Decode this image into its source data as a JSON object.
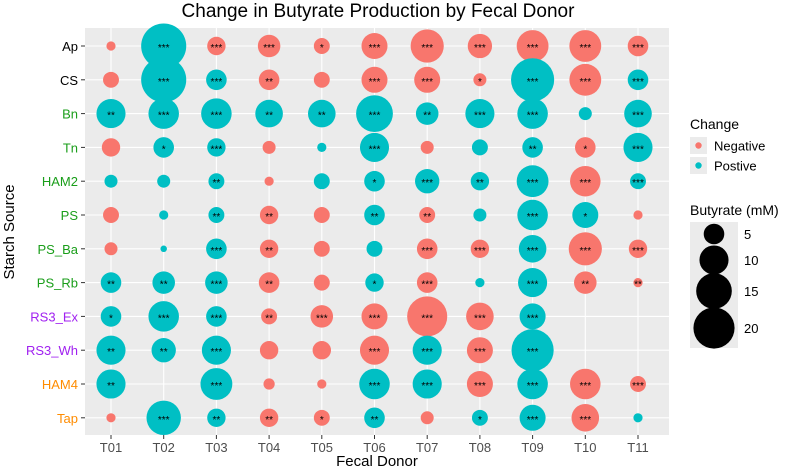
{
  "chart_data": {
    "type": "scatter",
    "subtype": "bubble",
    "title": "Change in Butyrate Production by Fecal Donor",
    "xlabel": "Fecal Donor",
    "ylabel": "Starch Source",
    "x_categories": [
      "T01",
      "T02",
      "T03",
      "T04",
      "T05",
      "T06",
      "T07",
      "T08",
      "T09",
      "T10",
      "T11"
    ],
    "y_categories": [
      {
        "label": "Ap",
        "color": "#000000"
      },
      {
        "label": "CS",
        "color": "#000000"
      },
      {
        "label": "Bn",
        "color": "#1a9e1a"
      },
      {
        "label": "Tn",
        "color": "#1a9e1a"
      },
      {
        "label": "HAM2",
        "color": "#1a9e1a"
      },
      {
        "label": "PS",
        "color": "#1a9e1a"
      },
      {
        "label": "PS_Ba",
        "color": "#1a9e1a"
      },
      {
        "label": "PS_Rb",
        "color": "#1a9e1a"
      },
      {
        "label": "RS3_Ex",
        "color": "#a020f0"
      },
      {
        "label": "RS3_Wh",
        "color": "#a020f0"
      },
      {
        "label": "HAM4",
        "color": "#ff8c00"
      },
      {
        "label": "Tap",
        "color": "#ff8c00"
      }
    ],
    "legend_change": {
      "title": "Change",
      "items": [
        {
          "label": "Negative",
          "color": "#F8766D"
        },
        {
          "label": "Postive",
          "color": "#00BFC4"
        }
      ]
    },
    "legend_size": {
      "title": "Butyrate (mM)",
      "values": [
        5,
        10,
        15,
        20
      ]
    },
    "points": [
      {
        "donor": "T01",
        "source": "Ap",
        "butyrate": 1,
        "change": "Negative",
        "sig": ""
      },
      {
        "donor": "T02",
        "source": "Ap",
        "butyrate": 24,
        "change": "Postive",
        "sig": "***"
      },
      {
        "donor": "T03",
        "source": "Ap",
        "butyrate": 4,
        "change": "Negative",
        "sig": "***"
      },
      {
        "donor": "T04",
        "source": "Ap",
        "butyrate": 6,
        "change": "Negative",
        "sig": "***"
      },
      {
        "donor": "T05",
        "source": "Ap",
        "butyrate": 3,
        "change": "Negative",
        "sig": "*"
      },
      {
        "donor": "T06",
        "source": "Ap",
        "butyrate": 8,
        "change": "Negative",
        "sig": "***"
      },
      {
        "donor": "T07",
        "source": "Ap",
        "butyrate": 13,
        "change": "Negative",
        "sig": "***"
      },
      {
        "donor": "T08",
        "source": "Ap",
        "butyrate": 7,
        "change": "Negative",
        "sig": "***"
      },
      {
        "donor": "T09",
        "source": "Ap",
        "butyrate": 12,
        "change": "Negative",
        "sig": "***"
      },
      {
        "donor": "T10",
        "source": "Ap",
        "butyrate": 12,
        "change": "Negative",
        "sig": "***"
      },
      {
        "donor": "T11",
        "source": "Ap",
        "butyrate": 5,
        "change": "Negative",
        "sig": "***"
      },
      {
        "donor": "T01",
        "source": "CS",
        "butyrate": 3,
        "change": "Negative",
        "sig": ""
      },
      {
        "donor": "T02",
        "source": "CS",
        "butyrate": 24,
        "change": "Postive",
        "sig": "***"
      },
      {
        "donor": "T03",
        "source": "CS",
        "butyrate": 5,
        "change": "Postive",
        "sig": "***"
      },
      {
        "donor": "T04",
        "source": "CS",
        "butyrate": 5,
        "change": "Negative",
        "sig": "**"
      },
      {
        "donor": "T05",
        "source": "CS",
        "butyrate": 3,
        "change": "Negative",
        "sig": ""
      },
      {
        "donor": "T06",
        "source": "CS",
        "butyrate": 8,
        "change": "Negative",
        "sig": "***"
      },
      {
        "donor": "T07",
        "source": "CS",
        "butyrate": 8,
        "change": "Negative",
        "sig": "***"
      },
      {
        "donor": "T08",
        "source": "CS",
        "butyrate": 2,
        "change": "Negative",
        "sig": "*"
      },
      {
        "donor": "T09",
        "source": "CS",
        "butyrate": 22,
        "change": "Postive",
        "sig": "***"
      },
      {
        "donor": "T10",
        "source": "CS",
        "butyrate": 12,
        "change": "Negative",
        "sig": "***"
      },
      {
        "donor": "T11",
        "source": "CS",
        "butyrate": 5,
        "change": "Postive",
        "sig": "***"
      },
      {
        "donor": "T01",
        "source": "Bn",
        "butyrate": 10,
        "change": "Postive",
        "sig": "**"
      },
      {
        "donor": "T02",
        "source": "Bn",
        "butyrate": 11,
        "change": "Postive",
        "sig": "***"
      },
      {
        "donor": "T03",
        "source": "Bn",
        "butyrate": 11,
        "change": "Postive",
        "sig": "***"
      },
      {
        "donor": "T04",
        "source": "Bn",
        "butyrate": 9,
        "change": "Postive",
        "sig": "**"
      },
      {
        "donor": "T05",
        "source": "Bn",
        "butyrate": 9,
        "change": "Postive",
        "sig": "**"
      },
      {
        "donor": "T06",
        "source": "Bn",
        "butyrate": 16,
        "change": "Postive",
        "sig": "***"
      },
      {
        "donor": "T07",
        "source": "Bn",
        "butyrate": 6,
        "change": "Postive",
        "sig": "**"
      },
      {
        "donor": "T08",
        "source": "Bn",
        "butyrate": 10,
        "change": "Postive",
        "sig": "***"
      },
      {
        "donor": "T09",
        "source": "Bn",
        "butyrate": 11,
        "change": "Postive",
        "sig": "***"
      },
      {
        "donor": "T10",
        "source": "Bn",
        "butyrate": 2,
        "change": "Postive",
        "sig": ""
      },
      {
        "donor": "T11",
        "source": "Bn",
        "butyrate": 9,
        "change": "Postive",
        "sig": "***"
      },
      {
        "donor": "T01",
        "source": "Tn",
        "butyrate": 4,
        "change": "Negative",
        "sig": ""
      },
      {
        "donor": "T02",
        "source": "Tn",
        "butyrate": 5,
        "change": "Postive",
        "sig": "*"
      },
      {
        "donor": "T03",
        "source": "Tn",
        "butyrate": 4,
        "change": "Postive",
        "sig": "***"
      },
      {
        "donor": "T04",
        "source": "Tn",
        "butyrate": 2,
        "change": "Negative",
        "sig": ""
      },
      {
        "donor": "T05",
        "source": "Tn",
        "butyrate": 1,
        "change": "Postive",
        "sig": ""
      },
      {
        "donor": "T06",
        "source": "Tn",
        "butyrate": 10,
        "change": "Postive",
        "sig": "***"
      },
      {
        "donor": "T07",
        "source": "Tn",
        "butyrate": 2,
        "change": "Negative",
        "sig": ""
      },
      {
        "donor": "T08",
        "source": "Tn",
        "butyrate": 3,
        "change": "Postive",
        "sig": ""
      },
      {
        "donor": "T09",
        "source": "Tn",
        "butyrate": 5,
        "change": "Postive",
        "sig": "**"
      },
      {
        "donor": "T10",
        "source": "Tn",
        "butyrate": 5,
        "change": "Negative",
        "sig": "*"
      },
      {
        "donor": "T11",
        "source": "Tn",
        "butyrate": 10,
        "change": "Postive",
        "sig": "***"
      },
      {
        "donor": "T01",
        "source": "HAM2",
        "butyrate": 2,
        "change": "Postive",
        "sig": ""
      },
      {
        "donor": "T02",
        "source": "HAM2",
        "butyrate": 2,
        "change": "Postive",
        "sig": ""
      },
      {
        "donor": "T03",
        "source": "HAM2",
        "butyrate": 3,
        "change": "Postive",
        "sig": "**"
      },
      {
        "donor": "T04",
        "source": "HAM2",
        "butyrate": 1,
        "change": "Negative",
        "sig": ""
      },
      {
        "donor": "T05",
        "source": "HAM2",
        "butyrate": 3,
        "change": "Postive",
        "sig": ""
      },
      {
        "donor": "T06",
        "source": "HAM2",
        "butyrate": 5,
        "change": "Postive",
        "sig": "*"
      },
      {
        "donor": "T07",
        "source": "HAM2",
        "butyrate": 7,
        "change": "Postive",
        "sig": "***"
      },
      {
        "donor": "T08",
        "source": "HAM2",
        "butyrate": 4,
        "change": "Postive",
        "sig": "**"
      },
      {
        "donor": "T09",
        "source": "HAM2",
        "butyrate": 12,
        "change": "Postive",
        "sig": "***"
      },
      {
        "donor": "T10",
        "source": "HAM2",
        "butyrate": 11,
        "change": "Negative",
        "sig": "***"
      },
      {
        "donor": "T11",
        "source": "HAM2",
        "butyrate": 3,
        "change": "Postive",
        "sig": "***"
      },
      {
        "donor": "T01",
        "source": "PS",
        "butyrate": 3,
        "change": "Negative",
        "sig": ""
      },
      {
        "donor": "T02",
        "source": "PS",
        "butyrate": 1,
        "change": "Postive",
        "sig": ""
      },
      {
        "donor": "T03",
        "source": "PS",
        "butyrate": 3,
        "change": "Postive",
        "sig": "**"
      },
      {
        "donor": "T04",
        "source": "PS",
        "butyrate": 4,
        "change": "Negative",
        "sig": "**"
      },
      {
        "donor": "T05",
        "source": "PS",
        "butyrate": 3,
        "change": "Negative",
        "sig": ""
      },
      {
        "donor": "T06",
        "source": "PS",
        "butyrate": 5,
        "change": "Postive",
        "sig": "**"
      },
      {
        "donor": "T07",
        "source": "PS",
        "butyrate": 3,
        "change": "Negative",
        "sig": "**"
      },
      {
        "donor": "T08",
        "source": "PS",
        "butyrate": 2,
        "change": "Postive",
        "sig": ""
      },
      {
        "donor": "T09",
        "source": "PS",
        "butyrate": 11,
        "change": "Postive",
        "sig": "***"
      },
      {
        "donor": "T10",
        "source": "PS",
        "butyrate": 8,
        "change": "Postive",
        "sig": "*"
      },
      {
        "donor": "T11",
        "source": "PS",
        "butyrate": 1,
        "change": "Negative",
        "sig": ""
      },
      {
        "donor": "T01",
        "source": "PS_Ba",
        "butyrate": 2,
        "change": "Negative",
        "sig": ""
      },
      {
        "donor": "T02",
        "source": "PS_Ba",
        "butyrate": 0.5,
        "change": "Postive",
        "sig": ""
      },
      {
        "donor": "T03",
        "source": "PS_Ba",
        "butyrate": 5,
        "change": "Postive",
        "sig": "***"
      },
      {
        "donor": "T04",
        "source": "PS_Ba",
        "butyrate": 4,
        "change": "Negative",
        "sig": "**"
      },
      {
        "donor": "T05",
        "source": "PS_Ba",
        "butyrate": 3,
        "change": "Negative",
        "sig": ""
      },
      {
        "donor": "T06",
        "source": "PS_Ba",
        "butyrate": 3,
        "change": "Postive",
        "sig": ""
      },
      {
        "donor": "T07",
        "source": "PS_Ba",
        "butyrate": 5,
        "change": "Negative",
        "sig": "***"
      },
      {
        "donor": "T08",
        "source": "PS_Ba",
        "butyrate": 4,
        "change": "Negative",
        "sig": "***"
      },
      {
        "donor": "T09",
        "source": "PS_Ba",
        "butyrate": 9,
        "change": "Postive",
        "sig": "***"
      },
      {
        "donor": "T10",
        "source": "PS_Ba",
        "butyrate": 13,
        "change": "Negative",
        "sig": "***"
      },
      {
        "donor": "T11",
        "source": "PS_Ba",
        "butyrate": 4,
        "change": "Negative",
        "sig": "***"
      },
      {
        "donor": "T01",
        "source": "PS_Rb",
        "butyrate": 5,
        "change": "Postive",
        "sig": "**"
      },
      {
        "donor": "T02",
        "source": "PS_Rb",
        "butyrate": 6,
        "change": "Postive",
        "sig": "**"
      },
      {
        "donor": "T03",
        "source": "PS_Rb",
        "butyrate": 6,
        "change": "Postive",
        "sig": "***"
      },
      {
        "donor": "T04",
        "source": "PS_Rb",
        "butyrate": 5,
        "change": "Negative",
        "sig": "**"
      },
      {
        "donor": "T05",
        "source": "PS_Rb",
        "butyrate": 3,
        "change": "Negative",
        "sig": ""
      },
      {
        "donor": "T06",
        "source": "PS_Rb",
        "butyrate": 4,
        "change": "Postive",
        "sig": "*"
      },
      {
        "donor": "T07",
        "source": "PS_Rb",
        "butyrate": 5,
        "change": "Negative",
        "sig": "***"
      },
      {
        "donor": "T08",
        "source": "PS_Rb",
        "butyrate": 1,
        "change": "Postive",
        "sig": ""
      },
      {
        "donor": "T09",
        "source": "PS_Rb",
        "butyrate": 10,
        "change": "Postive",
        "sig": "***"
      },
      {
        "donor": "T10",
        "source": "PS_Rb",
        "butyrate": 6,
        "change": "Negative",
        "sig": "**"
      },
      {
        "donor": "T11",
        "source": "PS_Rb",
        "butyrate": 1,
        "change": "Negative",
        "sig": "**"
      },
      {
        "donor": "T01",
        "source": "RS3_Ex",
        "butyrate": 5,
        "change": "Postive",
        "sig": "*"
      },
      {
        "donor": "T02",
        "source": "RS3_Ex",
        "butyrate": 11,
        "change": "Postive",
        "sig": "***"
      },
      {
        "donor": "T03",
        "source": "RS3_Ex",
        "butyrate": 5,
        "change": "Postive",
        "sig": "***"
      },
      {
        "donor": "T04",
        "source": "RS3_Ex",
        "butyrate": 3,
        "change": "Negative",
        "sig": "**"
      },
      {
        "donor": "T05",
        "source": "RS3_Ex",
        "butyrate": 6,
        "change": "Negative",
        "sig": "***"
      },
      {
        "donor": "T06",
        "source": "RS3_Ex",
        "butyrate": 8,
        "change": "Negative",
        "sig": "***"
      },
      {
        "donor": "T07",
        "source": "RS3_Ex",
        "butyrate": 19,
        "change": "Negative",
        "sig": "***"
      },
      {
        "donor": "T08",
        "source": "RS3_Ex",
        "butyrate": 9,
        "change": "Negative",
        "sig": "***"
      },
      {
        "donor": "T09",
        "source": "RS3_Ex",
        "butyrate": 8,
        "change": "Postive",
        "sig": "***"
      },
      {
        "donor": "T01",
        "source": "RS3_Wh",
        "butyrate": 10,
        "change": "Postive",
        "sig": "**"
      },
      {
        "donor": "T02",
        "source": "RS3_Wh",
        "butyrate": 7,
        "change": "Postive",
        "sig": "**"
      },
      {
        "donor": "T03",
        "source": "RS3_Wh",
        "butyrate": 10,
        "change": "Postive",
        "sig": "***"
      },
      {
        "donor": "T04",
        "source": "RS3_Wh",
        "butyrate": 4,
        "change": "Negative",
        "sig": ""
      },
      {
        "donor": "T05",
        "source": "RS3_Wh",
        "butyrate": 4,
        "change": "Negative",
        "sig": ""
      },
      {
        "donor": "T06",
        "source": "RS3_Wh",
        "butyrate": 10,
        "change": "Negative",
        "sig": "***"
      },
      {
        "donor": "T07",
        "source": "RS3_Wh",
        "butyrate": 10,
        "change": "Postive",
        "sig": "***"
      },
      {
        "donor": "T08",
        "source": "RS3_Wh",
        "butyrate": 8,
        "change": "Negative",
        "sig": "***"
      },
      {
        "donor": "T09",
        "source": "RS3_Wh",
        "butyrate": 21,
        "change": "Postive",
        "sig": "***"
      },
      {
        "donor": "T01",
        "source": "HAM4",
        "butyrate": 10,
        "change": "Postive",
        "sig": "**"
      },
      {
        "donor": "T03",
        "source": "HAM4",
        "butyrate": 12,
        "change": "Postive",
        "sig": "***"
      },
      {
        "donor": "T04",
        "source": "HAM4",
        "butyrate": 1.5,
        "change": "Negative",
        "sig": ""
      },
      {
        "donor": "T05",
        "source": "HAM4",
        "butyrate": 1,
        "change": "Negative",
        "sig": ""
      },
      {
        "donor": "T06",
        "source": "HAM4",
        "butyrate": 11,
        "change": "Postive",
        "sig": "***"
      },
      {
        "donor": "T07",
        "source": "HAM4",
        "butyrate": 10,
        "change": "Postive",
        "sig": "***"
      },
      {
        "donor": "T08",
        "source": "HAM4",
        "butyrate": 8,
        "change": "Negative",
        "sig": "***"
      },
      {
        "donor": "T09",
        "source": "HAM4",
        "butyrate": 11,
        "change": "Postive",
        "sig": "***"
      },
      {
        "donor": "T10",
        "source": "HAM4",
        "butyrate": 11,
        "change": "Negative",
        "sig": "***"
      },
      {
        "donor": "T11",
        "source": "HAM4",
        "butyrate": 3,
        "change": "Negative",
        "sig": "***"
      },
      {
        "donor": "T01",
        "source": "Tap",
        "butyrate": 1,
        "change": "Negative",
        "sig": ""
      },
      {
        "donor": "T02",
        "source": "Tap",
        "butyrate": 14,
        "change": "Postive",
        "sig": "***"
      },
      {
        "donor": "T03",
        "source": "Tap",
        "butyrate": 4,
        "change": "Postive",
        "sig": "**"
      },
      {
        "donor": "T04",
        "source": "Tap",
        "butyrate": 4,
        "change": "Negative",
        "sig": "**"
      },
      {
        "donor": "T05",
        "source": "Tap",
        "butyrate": 3,
        "change": "Negative",
        "sig": "*"
      },
      {
        "donor": "T06",
        "source": "Tap",
        "butyrate": 5,
        "change": "Postive",
        "sig": "**"
      },
      {
        "donor": "T07",
        "source": "Tap",
        "butyrate": 2,
        "change": "Negative",
        "sig": ""
      },
      {
        "donor": "T08",
        "source": "Tap",
        "butyrate": 3,
        "change": "Postive",
        "sig": "*"
      },
      {
        "donor": "T09",
        "source": "Tap",
        "butyrate": 8,
        "change": "Postive",
        "sig": "***"
      },
      {
        "donor": "T10",
        "source": "Tap",
        "butyrate": 9,
        "change": "Negative",
        "sig": "***"
      },
      {
        "donor": "T11",
        "source": "Tap",
        "butyrate": 1,
        "change": "Postive",
        "sig": ""
      }
    ]
  }
}
